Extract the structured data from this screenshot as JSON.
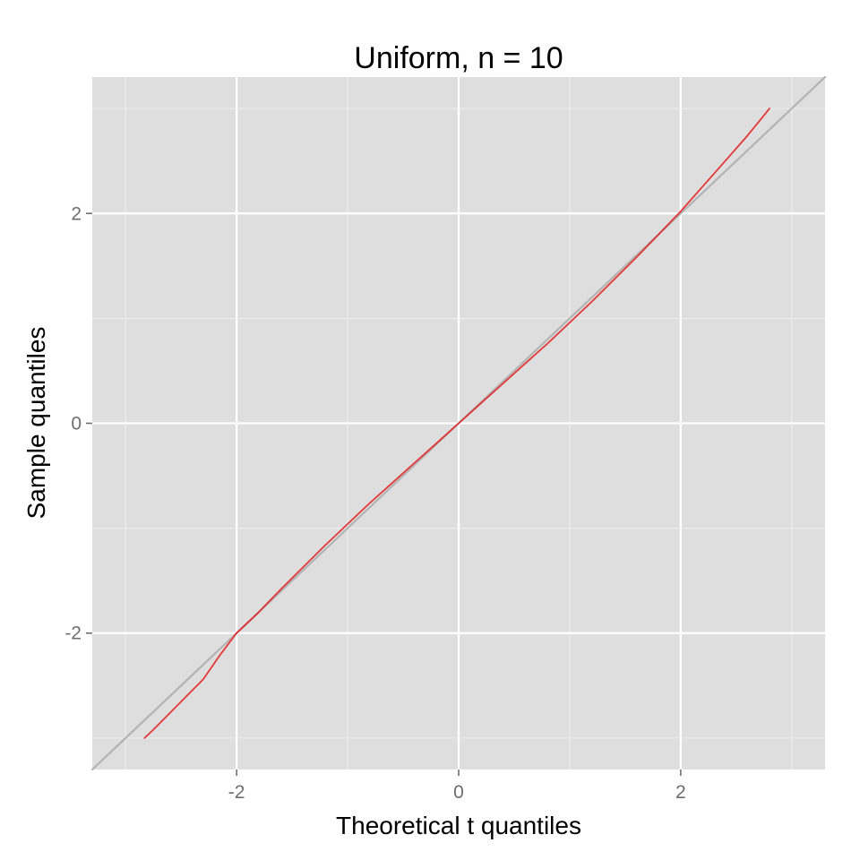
{
  "chart_data": {
    "type": "line",
    "title": "Uniform, n = 10",
    "xlabel": "Theoretical t quantiles",
    "ylabel": "Sample quantiles",
    "xlim": [
      -3.3,
      3.3
    ],
    "ylim": [
      -3.3,
      3.3
    ],
    "x_ticks": [
      -2,
      0,
      2
    ],
    "y_ticks": [
      -2,
      0,
      2
    ],
    "x_tick_labels": [
      "-2",
      "0",
      "2"
    ],
    "y_tick_labels": [
      "-2",
      "0",
      "2"
    ],
    "grid": true,
    "background": "#dedede",
    "series": [
      {
        "color": "#e41a1c",
        "x": [
          -2.83,
          -2.75,
          -2.6,
          -2.45,
          -2.3,
          -2.15,
          -2.0,
          -1.8,
          -1.6,
          -1.4,
          -1.2,
          -1.0,
          -0.8,
          -0.6,
          -0.4,
          -0.2,
          0.0,
          0.2,
          0.4,
          0.6,
          0.8,
          1.0,
          1.2,
          1.4,
          1.6,
          1.8,
          2.0,
          2.15,
          2.3,
          2.45,
          2.6,
          2.7,
          2.8
        ],
        "y": [
          -3.0,
          -2.92,
          -2.76,
          -2.6,
          -2.44,
          -2.21,
          -2.0,
          -1.8,
          -1.58,
          -1.37,
          -1.16,
          -0.96,
          -0.76,
          -0.57,
          -0.38,
          -0.19,
          0.0,
          0.19,
          0.38,
          0.57,
          0.76,
          0.96,
          1.16,
          1.37,
          1.58,
          1.8,
          2.02,
          2.2,
          2.38,
          2.56,
          2.74,
          2.87,
          3.0
        ]
      },
      {
        "color": "#b3b3b3",
        "x": [
          -3.3,
          3.3
        ],
        "y": [
          -3.3,
          3.3
        ]
      }
    ]
  }
}
